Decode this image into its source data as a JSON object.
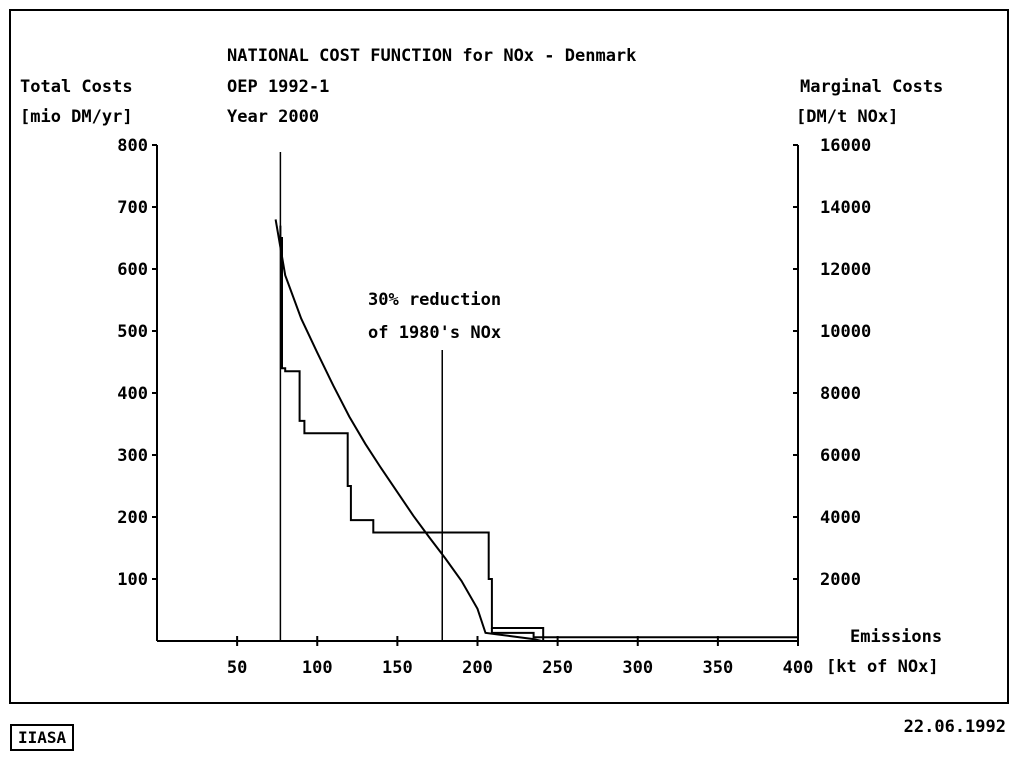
{
  "footer": {
    "logo": "IIASA",
    "date": "22.06.1992"
  },
  "chart_data": {
    "type": "line",
    "title": [
      "NATIONAL COST FUNCTION for NOx - Denmark",
      "OEP 1992-1",
      "Year 2000"
    ],
    "ylabel_left": [
      "Total Costs",
      "[mio DM/yr]"
    ],
    "ylabel_right": [
      "Marginal Costs",
      "[DM/t NOx]"
    ],
    "xlabel": [
      "Emissions",
      "[kt of NOx]"
    ],
    "xlim": [
      0,
      400
    ],
    "ylim_left": [
      0,
      800
    ],
    "ylim_right": [
      0,
      16000
    ],
    "x_ticks": [
      50,
      100,
      150,
      200,
      250,
      300,
      350,
      400
    ],
    "y_ticks_left": [
      100,
      200,
      300,
      400,
      500,
      600,
      700,
      800
    ],
    "y_ticks_right": [
      2000,
      4000,
      6000,
      8000,
      10000,
      12000,
      14000,
      16000
    ],
    "annotation": {
      "text": [
        "30% reduction",
        "of 1980's NOx"
      ],
      "x": 178
    },
    "limit_line_x": 77,
    "series": [
      {
        "kind": "total_costs",
        "axis": "left",
        "x": [
          74,
          80,
          90,
          100,
          110,
          120,
          130,
          140,
          150,
          160,
          170,
          180,
          190,
          200,
          205,
          220,
          235,
          240
        ],
        "y": [
          680,
          590,
          520,
          465,
          412,
          362,
          318,
          278,
          240,
          202,
          167,
          133,
          97,
          52,
          13,
          8,
          3,
          0
        ]
      },
      {
        "kind": "marginal_costs_step",
        "axis": "right",
        "x": [
          77,
          77,
          78,
          78,
          80,
          80,
          89,
          89,
          92,
          92,
          119,
          119,
          121,
          121,
          135,
          135,
          207,
          207,
          209,
          209,
          241,
          241,
          400
        ],
        "y": [
          13400,
          13000,
          13000,
          8800,
          8800,
          8700,
          8700,
          7100,
          7100,
          6700,
          6700,
          5000,
          5000,
          3900,
          3900,
          3500,
          3500,
          2000,
          2000,
          420,
          420,
          120,
          120
        ]
      },
      {
        "kind": "marginal_costs_step_lower",
        "axis": "right",
        "x": [
          209,
          209,
          235,
          235,
          241,
          241
        ],
        "y": [
          420,
          260,
          260,
          120,
          120,
          0
        ]
      }
    ]
  }
}
